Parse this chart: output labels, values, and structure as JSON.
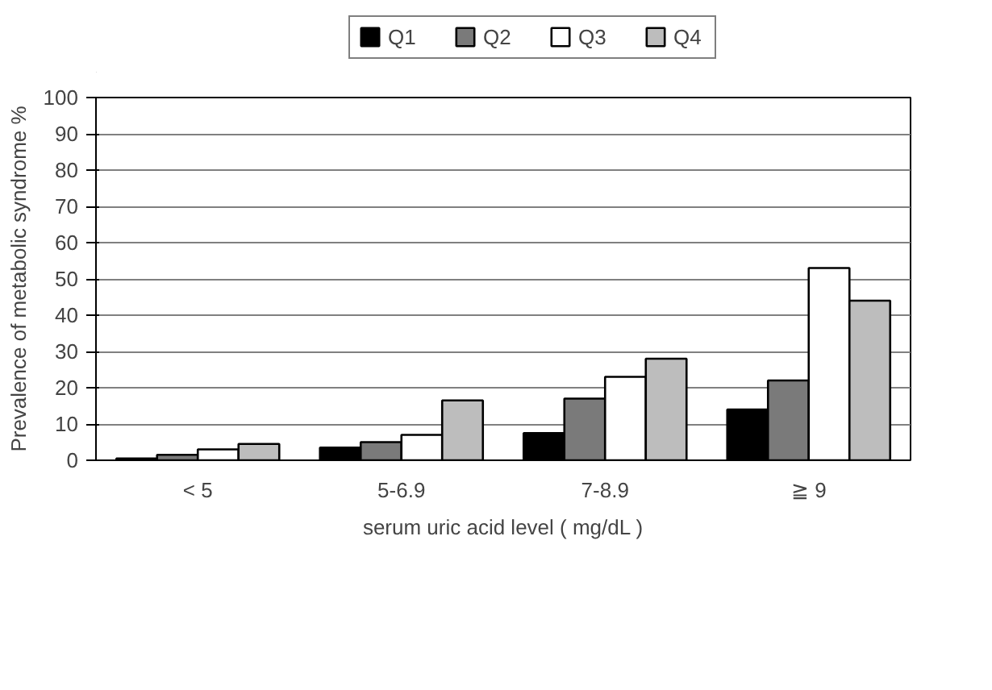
{
  "chart_data": {
    "type": "bar",
    "xlabel": "serum uric acid level ( mg/dL )",
    "ylabel": "Prevalence of metabolic syndrome %",
    "categories": [
      "< 5",
      "5-6.9",
      "7-8.9",
      "≧ 9"
    ],
    "series": [
      {
        "name": "Q1",
        "color": "#000000",
        "values": [
          0.5,
          3.5,
          7.5,
          14
        ]
      },
      {
        "name": "Q2",
        "color": "#7a7a7a",
        "values": [
          1.5,
          5,
          17,
          22
        ]
      },
      {
        "name": "Q3",
        "color": "#ffffff",
        "values": [
          3,
          7,
          23,
          53
        ]
      },
      {
        "name": "Q4",
        "color": "#bdbdbd",
        "values": [
          4.5,
          16.5,
          28,
          44
        ]
      }
    ],
    "ylim": [
      0,
      100
    ],
    "yticks": [
      0,
      10,
      20,
      30,
      40,
      50,
      60,
      70,
      80,
      90,
      100
    ],
    "grid": "y",
    "legend": "top"
  }
}
